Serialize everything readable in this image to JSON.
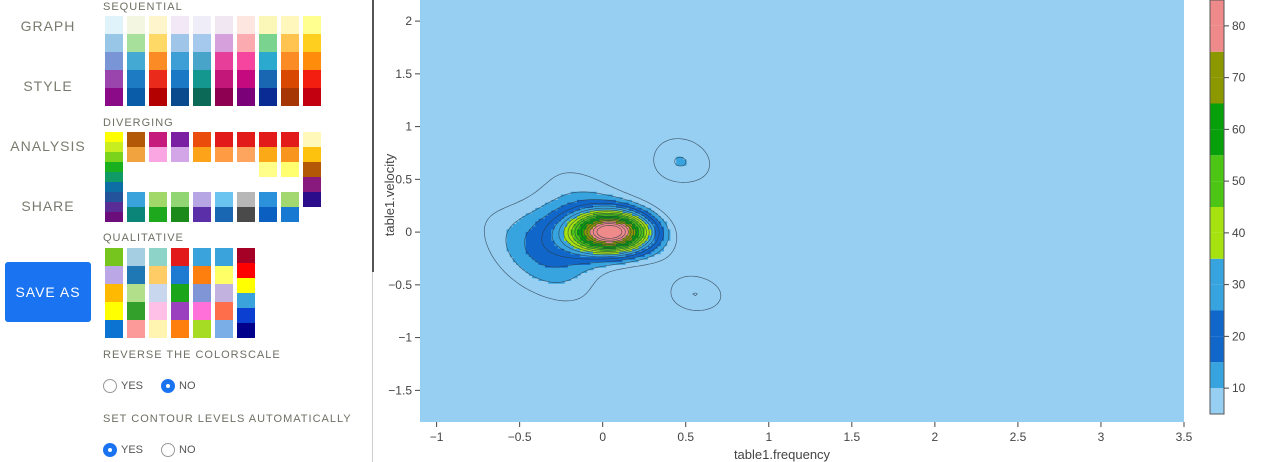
{
  "nav": {
    "graph": "GRAPH",
    "style": "STYLE",
    "analysis": "ANALYSIS",
    "share": "SHARE",
    "save_as": "SAVE AS"
  },
  "panel": {
    "sequential_label": "SEQUENTIAL",
    "diverging_label": "DIVERGING",
    "qualitative_label": "QUALITATIVE",
    "reverse_label": "REVERSE THE COLORSCALE",
    "reverse_yes": "YES",
    "reverse_no": "NO",
    "reverse_selected": "NO",
    "auto_levels_label": "SET CONTOUR LEVELS AUTOMATICALLY",
    "auto_yes": "YES",
    "auto_no": "NO",
    "auto_selected": "YES"
  },
  "palettes": {
    "sequential": [
      [
        "#e0f3fb",
        "#97c6e6",
        "#7a95d6",
        "#9a45ad",
        "#8b0a88"
      ],
      [
        "#f3f6e1",
        "#a6e09a",
        "#44a9d3",
        "#1c7bc3",
        "#0b5ca8"
      ],
      [
        "#fff5cc",
        "#ffd966",
        "#fb8b24",
        "#ea2a1a",
        "#b30000"
      ],
      [
        "#f2e8f6",
        "#9fc5e8",
        "#3d9fd5",
        "#1a78c4",
        "#0b4a8c"
      ],
      [
        "#eeedf8",
        "#a4c9ec",
        "#49a4c9",
        "#13978f",
        "#0b6a57"
      ],
      [
        "#f1e7f3",
        "#d6a0dd",
        "#e73e9a",
        "#c3187a",
        "#8e0152"
      ],
      [
        "#fde5e0",
        "#fbaab0",
        "#f5459f",
        "#c40a7e",
        "#7a0177"
      ],
      [
        "#fbf7b8",
        "#7ad48f",
        "#2ba9cf",
        "#1967b3",
        "#0a2b93"
      ],
      [
        "#fff7bc",
        "#fec44f",
        "#fb8b24",
        "#d94801",
        "#a63603"
      ],
      [
        "#ffff8f",
        "#ffcf20",
        "#ff8c0a",
        "#f31d10",
        "#c30010"
      ]
    ],
    "diverging_first": [
      "#ffff00",
      "#c8ee20",
      "#7cd31b",
      "#19b020",
      "#0f9a66",
      "#0d6ea6",
      "#23539a",
      "#5a2c95",
      "#6b0d7a"
    ],
    "diverging": [
      [
        "#b35806",
        "#f1a340",
        "#ffffff",
        "#ffffff",
        "#3aa3db",
        "#0b8578"
      ],
      [
        "#c51b7d",
        "#f9a6e2",
        "#ffffff",
        "#ffffff",
        "#a2d76a",
        "#1ea81e"
      ],
      [
        "#7b1fa2",
        "#d3a6e8",
        "#ffffff",
        "#ffffff",
        "#91d575",
        "#1b8a1b"
      ],
      [
        "#ea4c0b",
        "#fca31a",
        "#ffffff",
        "#ffffff",
        "#b6a7e4",
        "#5a2fa8"
      ],
      [
        "#e21a1a",
        "#ff9b42",
        "#ffffff",
        "#ffffff",
        "#6bc3f0",
        "#1967b3"
      ],
      [
        "#e21a1a",
        "#fda55e",
        "#ffffff",
        "#ffffff",
        "#b7b7b7",
        "#4a4a4a"
      ],
      [
        "#e21a1a",
        "#fba917",
        "#ffff8a",
        "#ffffff",
        "#2b91db",
        "#0b5fc0"
      ],
      [
        "#e21a1a",
        "#f7951e",
        "#ffff70",
        "#ffffff",
        "#a2d86f",
        "#1879d2"
      ],
      [
        "#fff8b8",
        "#fcc20e",
        "#b35806",
        "#881a7e",
        "#2b0c8a"
      ]
    ],
    "qualitative": [
      [
        "#76c51f",
        "#bba7e6",
        "#ffb900",
        "#ffff00",
        "#0b73d1"
      ],
      [
        "#a6cee3",
        "#1f78b4",
        "#b2df8a",
        "#33a02c",
        "#fb9a99"
      ],
      [
        "#8dd3c7",
        "#ffcc66",
        "#c8d6ee",
        "#ffc0e8",
        "#fff5b1"
      ],
      [
        "#e21a1a",
        "#1f7ad1",
        "#1aa51a",
        "#9b41c0",
        "#ff7f0e"
      ],
      [
        "#3aa3db",
        "#ff7f0e",
        "#7f95d6",
        "#ff70d8",
        "#a6dc24"
      ],
      [
        "#3aa3db",
        "#ffff66",
        "#c1b2e0",
        "#ff6e4a",
        "#7aaee6"
      ],
      [
        "#a50026",
        "#ff0000",
        "#ffff00",
        "#3aa3db",
        "#0b3fd1",
        "#00008b"
      ]
    ]
  },
  "chart_data": {
    "type": "contour",
    "xlabel": "table1.frequency",
    "ylabel": "table1.velocity",
    "xlim": [
      -1.1,
      3.5
    ],
    "ylim": [
      -1.8,
      2.2
    ],
    "x_ticks": [
      "−1",
      "−0.5",
      "0",
      "0.5",
      "1",
      "1.5",
      "2",
      "2.5",
      "3",
      "3.5"
    ],
    "x_tick_values": [
      -1,
      -0.5,
      0,
      0.5,
      1,
      1.5,
      2,
      2.5,
      3,
      3.5
    ],
    "y_ticks": [
      "2",
      "1.5",
      "1",
      "0.5",
      "0",
      "−0.5",
      "−1",
      "−1.5"
    ],
    "y_tick_values": [
      2,
      1.5,
      1,
      0.5,
      0,
      -0.5,
      -1,
      -1.5
    ],
    "colorbar_ticks": [
      "10",
      "20",
      "30",
      "40",
      "50",
      "60",
      "70",
      "80"
    ],
    "colorbar_tick_values": [
      10,
      20,
      30,
      40,
      50,
      60,
      70,
      80
    ],
    "levels": [
      5,
      10,
      15,
      20,
      25,
      30,
      35,
      40,
      45,
      50,
      55,
      60,
      65,
      70,
      75,
      80,
      85
    ],
    "level_colors": [
      "#97cff2",
      "#38a4df",
      "#1167c9",
      "#1167c9",
      "#38a4df",
      "#38a4df",
      "#a5e20f",
      "#a5e20f",
      "#4cc514",
      "#4cc514",
      "#07a00b",
      "#07a00b",
      "#8b9800",
      "#8b9800",
      "#ef8a8a",
      "#ef8a8a"
    ],
    "background_color": "#97cff2",
    "peak": {
      "x": 0.05,
      "y": 0,
      "value": 83
    }
  }
}
